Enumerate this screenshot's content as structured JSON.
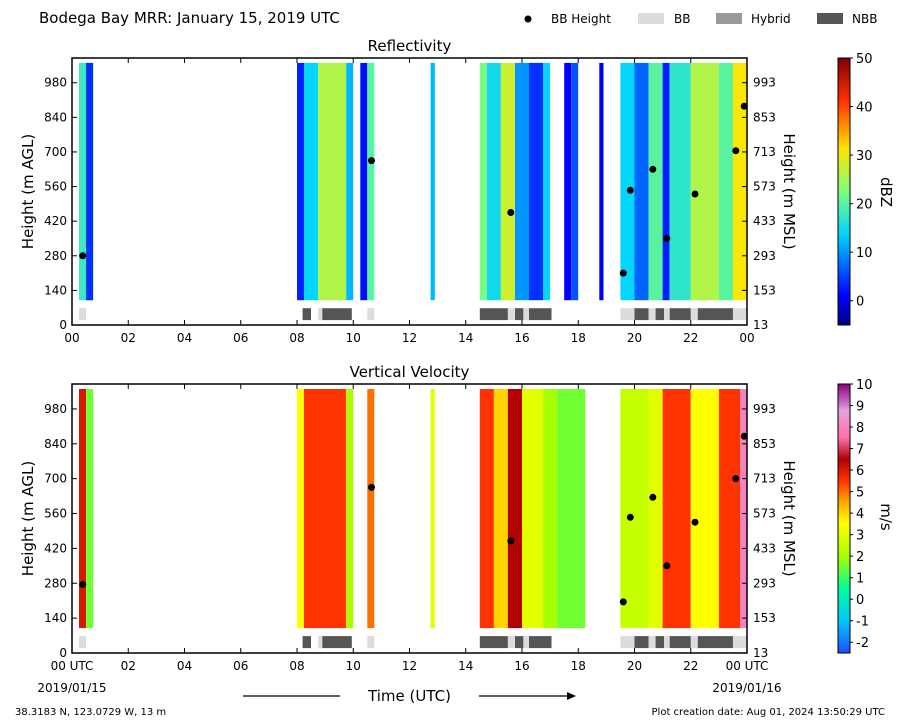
{
  "header": {
    "title": "Bodega Bay MRR:  January 15, 2019 UTC",
    "legend": [
      {
        "label": "BB Height",
        "kind": "dot",
        "color": "#000000"
      },
      {
        "label": "BB",
        "kind": "rect",
        "color": "#dcdcdc"
      },
      {
        "label": "Hybrid",
        "kind": "rect",
        "color": "#999999"
      },
      {
        "label": "NBB",
        "kind": "rect",
        "color": "#555555"
      }
    ]
  },
  "footer": {
    "location": "38.3183 N, 123.0729 W, 13 m",
    "creation": "Plot creation date: Aug 01, 2024 13:50:29 UTC",
    "time_label": "Time (UTC)",
    "start_date": "2019/01/15",
    "end_date": "2019/01/16"
  },
  "chart_data": [
    {
      "type": "heatmap",
      "title": "Reflectivity",
      "ylabel": "Height (m AGL)",
      "ylabel_right": "Height (m MSL)",
      "colorbar": {
        "label": "dBZ",
        "min": -5,
        "max": 50,
        "ticks": [
          0,
          10,
          20,
          30,
          40,
          50
        ]
      },
      "xlim": [
        0,
        24
      ],
      "ylim": [
        0,
        1080
      ],
      "xticks": [
        "00",
        "02",
        "04",
        "06",
        "08",
        "10",
        "12",
        "14",
        "16",
        "18",
        "20",
        "22",
        "00"
      ],
      "yticks": [
        0,
        140,
        280,
        420,
        560,
        700,
        840,
        980
      ],
      "yticks_right": [
        "13",
        "153",
        "293",
        "433",
        "573",
        "713",
        "853",
        "993"
      ],
      "bb_height": [
        {
          "t": 0.38,
          "h": 280
        },
        {
          "t": 10.65,
          "h": 665
        },
        {
          "t": 15.6,
          "h": 455
        },
        {
          "t": 19.6,
          "h": 210
        },
        {
          "t": 19.85,
          "h": 545
        },
        {
          "t": 20.65,
          "h": 630
        },
        {
          "t": 21.15,
          "h": 350
        },
        {
          "t": 22.15,
          "h": 530
        },
        {
          "t": 23.6,
          "h": 705
        },
        {
          "t": 23.9,
          "h": 885
        }
      ],
      "bb_type": [
        {
          "start": 0.25,
          "end": 0.5,
          "type": "BB"
        },
        {
          "start": 8.2,
          "end": 8.5,
          "type": "NBB"
        },
        {
          "start": 8.75,
          "end": 8.9,
          "type": "BB"
        },
        {
          "start": 8.9,
          "end": 9.95,
          "type": "NBB"
        },
        {
          "start": 10.5,
          "end": 10.75,
          "type": "BB"
        },
        {
          "start": 14.5,
          "end": 15.5,
          "type": "NBB"
        },
        {
          "start": 15.5,
          "end": 15.75,
          "type": "BB"
        },
        {
          "start": 15.75,
          "end": 16.05,
          "type": "NBB"
        },
        {
          "start": 16.05,
          "end": 16.25,
          "type": "BB"
        },
        {
          "start": 16.25,
          "end": 17.05,
          "type": "NBB"
        },
        {
          "start": 19.5,
          "end": 20.0,
          "type": "BB"
        },
        {
          "start": 20.0,
          "end": 20.5,
          "type": "NBB"
        },
        {
          "start": 20.5,
          "end": 20.75,
          "type": "BB"
        },
        {
          "start": 20.75,
          "end": 21.05,
          "type": "NBB"
        },
        {
          "start": 21.05,
          "end": 21.25,
          "type": "BB"
        },
        {
          "start": 21.25,
          "end": 22.0,
          "type": "NBB"
        },
        {
          "start": 22.0,
          "end": 22.25,
          "type": "BB"
        },
        {
          "start": 22.25,
          "end": 23.5,
          "type": "NBB"
        },
        {
          "start": 23.5,
          "end": 24.0,
          "type": "BB"
        }
      ],
      "echo_segments": [
        {
          "start": 0.25,
          "end": 0.75,
          "top": 1060,
          "level": 18
        },
        {
          "start": 0.5,
          "end": 0.75,
          "top": 1060,
          "level": 4
        },
        {
          "start": 8.0,
          "end": 8.25,
          "top": 1060,
          "level": 3
        },
        {
          "start": 8.25,
          "end": 8.75,
          "top": 1060,
          "level": 14
        },
        {
          "start": 8.75,
          "end": 9.75,
          "top": 1060,
          "level": 26
        },
        {
          "start": 9.75,
          "end": 10.0,
          "top": 1060,
          "level": 12
        },
        {
          "start": 10.25,
          "end": 10.5,
          "top": 1060,
          "level": 2
        },
        {
          "start": 10.5,
          "end": 10.75,
          "top": 1060,
          "level": 20
        },
        {
          "start": 12.75,
          "end": 12.9,
          "top": 1060,
          "level": 12
        },
        {
          "start": 14.5,
          "end": 14.75,
          "top": 1060,
          "level": 22
        },
        {
          "start": 14.75,
          "end": 15.25,
          "top": 1060,
          "level": 15
        },
        {
          "start": 15.25,
          "end": 15.75,
          "top": 1060,
          "level": 28
        },
        {
          "start": 15.75,
          "end": 16.25,
          "top": 1060,
          "level": 10
        },
        {
          "start": 16.25,
          "end": 16.75,
          "top": 1060,
          "level": 4
        },
        {
          "start": 16.75,
          "end": 17.0,
          "top": 1060,
          "level": 14
        },
        {
          "start": 17.5,
          "end": 17.75,
          "top": 1060,
          "level": 1
        },
        {
          "start": 17.75,
          "end": 18.0,
          "top": 1060,
          "level": 6
        },
        {
          "start": 18.75,
          "end": 18.9,
          "top": 1060,
          "level": 0
        },
        {
          "start": 19.5,
          "end": 20.0,
          "top": 1060,
          "level": 14
        },
        {
          "start": 20.0,
          "end": 20.5,
          "top": 1060,
          "level": 7
        },
        {
          "start": 20.5,
          "end": 21.0,
          "top": 1060,
          "level": 20
        },
        {
          "start": 21.0,
          "end": 21.25,
          "top": 1060,
          "level": 3
        },
        {
          "start": 21.25,
          "end": 22.0,
          "top": 1060,
          "level": 17
        },
        {
          "start": 22.0,
          "end": 23.0,
          "top": 1060,
          "level": 26
        },
        {
          "start": 23.0,
          "end": 23.5,
          "top": 1060,
          "level": 20
        },
        {
          "start": 23.5,
          "end": 24.0,
          "top": 1060,
          "level": 31
        }
      ]
    },
    {
      "type": "heatmap",
      "title": "Vertical Velocity",
      "ylabel": "Height (m AGL)",
      "ylabel_right": "Height (m MSL)",
      "colorbar": {
        "label": "m/s",
        "min": -2.5,
        "max": 10,
        "ticks": [
          -2,
          -1,
          0,
          1,
          2,
          3,
          4,
          5,
          6,
          7,
          8,
          9,
          10
        ]
      },
      "xlim": [
        0,
        24
      ],
      "ylim": [
        0,
        1080
      ],
      "xticks": [
        "00 UTC",
        "02",
        "04",
        "06",
        "08",
        "10",
        "12",
        "14",
        "16",
        "18",
        "20",
        "22",
        "00 UTC"
      ],
      "yticks": [
        0,
        140,
        280,
        420,
        560,
        700,
        840,
        980
      ],
      "yticks_right": [
        "13",
        "153",
        "293",
        "433",
        "573",
        "713",
        "853",
        "993"
      ],
      "bb_height": [
        {
          "t": 0.38,
          "h": 275
        },
        {
          "t": 10.65,
          "h": 665
        },
        {
          "t": 15.6,
          "h": 450
        },
        {
          "t": 19.6,
          "h": 205
        },
        {
          "t": 19.85,
          "h": 545
        },
        {
          "t": 20.65,
          "h": 625
        },
        {
          "t": 21.15,
          "h": 350
        },
        {
          "t": 22.15,
          "h": 525
        },
        {
          "t": 23.6,
          "h": 700
        },
        {
          "t": 23.9,
          "h": 870
        }
      ],
      "bb_type": [
        {
          "start": 0.25,
          "end": 0.5,
          "type": "BB"
        },
        {
          "start": 8.2,
          "end": 8.5,
          "type": "NBB"
        },
        {
          "start": 8.75,
          "end": 8.9,
          "type": "BB"
        },
        {
          "start": 8.9,
          "end": 9.95,
          "type": "NBB"
        },
        {
          "start": 10.5,
          "end": 10.75,
          "type": "BB"
        },
        {
          "start": 14.5,
          "end": 15.5,
          "type": "NBB"
        },
        {
          "start": 15.5,
          "end": 15.75,
          "type": "BB"
        },
        {
          "start": 15.75,
          "end": 16.05,
          "type": "NBB"
        },
        {
          "start": 16.05,
          "end": 16.25,
          "type": "BB"
        },
        {
          "start": 16.25,
          "end": 17.05,
          "type": "NBB"
        },
        {
          "start": 19.5,
          "end": 20.0,
          "type": "BB"
        },
        {
          "start": 20.0,
          "end": 20.5,
          "type": "NBB"
        },
        {
          "start": 20.5,
          "end": 20.75,
          "type": "BB"
        },
        {
          "start": 20.75,
          "end": 21.05,
          "type": "NBB"
        },
        {
          "start": 21.05,
          "end": 21.25,
          "type": "BB"
        },
        {
          "start": 21.25,
          "end": 22.0,
          "type": "NBB"
        },
        {
          "start": 22.0,
          "end": 22.25,
          "type": "BB"
        },
        {
          "start": 22.25,
          "end": 23.5,
          "type": "NBB"
        },
        {
          "start": 23.5,
          "end": 24.0,
          "type": "BB"
        }
      ],
      "velocity_segments": [
        {
          "start": 0.25,
          "end": 0.5,
          "top": 1060,
          "level": 6
        },
        {
          "start": 0.5,
          "end": 0.75,
          "top": 1060,
          "level": 1.5
        },
        {
          "start": 8.0,
          "end": 8.25,
          "top": 1060,
          "level": 3.5
        },
        {
          "start": 8.25,
          "end": 9.75,
          "top": 1060,
          "level": 5.5
        },
        {
          "start": 9.75,
          "end": 10.0,
          "top": 1060,
          "level": 2
        },
        {
          "start": 10.5,
          "end": 10.75,
          "top": 1060,
          "level": 5
        },
        {
          "start": 12.75,
          "end": 12.9,
          "top": 1060,
          "level": 3
        },
        {
          "start": 14.5,
          "end": 15.0,
          "top": 1060,
          "level": 5.5
        },
        {
          "start": 15.0,
          "end": 15.5,
          "top": 1060,
          "level": 4
        },
        {
          "start": 15.5,
          "end": 16.0,
          "top": 1060,
          "level": 6.5
        },
        {
          "start": 16.0,
          "end": 16.75,
          "top": 1060,
          "level": 3
        },
        {
          "start": 16.75,
          "end": 17.25,
          "top": 1060,
          "level": 2
        },
        {
          "start": 17.25,
          "end": 18.25,
          "top": 1060,
          "level": 1.5
        },
        {
          "start": 19.5,
          "end": 20.5,
          "top": 1060,
          "level": 2.5
        },
        {
          "start": 20.5,
          "end": 21.0,
          "top": 1060,
          "level": 3
        },
        {
          "start": 21.0,
          "end": 22.0,
          "top": 1060,
          "level": 5.5
        },
        {
          "start": 22.0,
          "end": 23.0,
          "top": 1060,
          "level": 3.5
        },
        {
          "start": 23.0,
          "end": 23.75,
          "top": 1060,
          "level": 5.5
        },
        {
          "start": 23.75,
          "end": 24.0,
          "top": 1060,
          "level": 8
        }
      ]
    }
  ]
}
